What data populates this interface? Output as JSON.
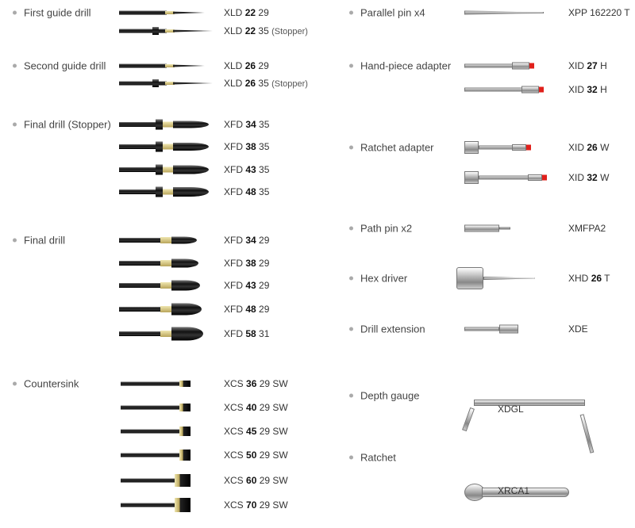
{
  "left_groups": [
    {
      "label": "First guide drill",
      "items": [
        {
          "prefix": "XLD",
          "bold": "22",
          "suffix": "29",
          "note": ""
        },
        {
          "prefix": "XLD",
          "bold": "22",
          "suffix": "35",
          "note": "(Stopper)"
        }
      ]
    },
    {
      "label": "Second guide drill",
      "items": [
        {
          "prefix": "XLD",
          "bold": "26",
          "suffix": "29",
          "note": ""
        },
        {
          "prefix": "XLD",
          "bold": "26",
          "suffix": "35",
          "note": "(Stopper)"
        }
      ]
    },
    {
      "label": "Final drill (Stopper)",
      "items": [
        {
          "prefix": "XFD",
          "bold": "34",
          "suffix": "35",
          "note": ""
        },
        {
          "prefix": "XFD",
          "bold": "38",
          "suffix": "35",
          "note": ""
        },
        {
          "prefix": "XFD",
          "bold": "43",
          "suffix": "35",
          "note": ""
        },
        {
          "prefix": "XFD",
          "bold": "48",
          "suffix": "35",
          "note": ""
        }
      ]
    },
    {
      "label": "Final drill",
      "items": [
        {
          "prefix": "XFD",
          "bold": "34",
          "suffix": "29",
          "note": ""
        },
        {
          "prefix": "XFD",
          "bold": "38",
          "suffix": "29",
          "note": ""
        },
        {
          "prefix": "XFD",
          "bold": "43",
          "suffix": "29",
          "note": ""
        },
        {
          "prefix": "XFD",
          "bold": "48",
          "suffix": "29",
          "note": ""
        },
        {
          "prefix": "XFD",
          "bold": "58",
          "suffix": "31",
          "note": ""
        }
      ]
    },
    {
      "label": "Countersink",
      "items": [
        {
          "prefix": "XCS",
          "bold": "36",
          "suffix": "29 SW",
          "note": ""
        },
        {
          "prefix": "XCS",
          "bold": "40",
          "suffix": "29 SW",
          "note": ""
        },
        {
          "prefix": "XCS",
          "bold": "45",
          "suffix": "29 SW",
          "note": ""
        },
        {
          "prefix": "XCS",
          "bold": "50",
          "suffix": "29 SW",
          "note": ""
        },
        {
          "prefix": "XCS",
          "bold": "60",
          "suffix": "29 SW",
          "note": ""
        },
        {
          "prefix": "XCS",
          "bold": "70",
          "suffix": "29 SW",
          "note": ""
        }
      ]
    }
  ],
  "right_groups": [
    {
      "label": "Parallel pin x4",
      "items": [
        {
          "prefix": "XPP 162220 T",
          "bold": "",
          "suffix": "",
          "note": ""
        }
      ]
    },
    {
      "label": "Hand-piece adapter",
      "items": [
        {
          "prefix": "XID",
          "bold": "27",
          "suffix": "H",
          "note": ""
        },
        {
          "prefix": "XID",
          "bold": "32",
          "suffix": "H",
          "note": ""
        }
      ]
    },
    {
      "label": "Ratchet adapter",
      "items": [
        {
          "prefix": "XID",
          "bold": "26",
          "suffix": "W",
          "note": ""
        },
        {
          "prefix": "XID",
          "bold": "32",
          "suffix": "W",
          "note": ""
        }
      ]
    },
    {
      "label": "Path pin x2",
      "items": [
        {
          "prefix": "XMFPA2",
          "bold": "",
          "suffix": "",
          "note": ""
        }
      ]
    },
    {
      "label": "Hex driver",
      "items": [
        {
          "prefix": "XHD",
          "bold": "26",
          "suffix": "T",
          "note": ""
        }
      ]
    },
    {
      "label": "Drill extension",
      "items": [
        {
          "prefix": "XDE",
          "bold": "",
          "suffix": "",
          "note": ""
        }
      ]
    },
    {
      "label": "Depth gauge",
      "items": [
        {
          "prefix": "XDGL",
          "bold": "",
          "suffix": "",
          "note": ""
        }
      ]
    },
    {
      "label": "Ratchet",
      "items": [
        {
          "prefix": "XRCA1",
          "bold": "",
          "suffix": "",
          "note": ""
        }
      ]
    }
  ],
  "colors": {
    "adapter_tip": "#e0201b",
    "bullet": "#aaaaaa"
  }
}
